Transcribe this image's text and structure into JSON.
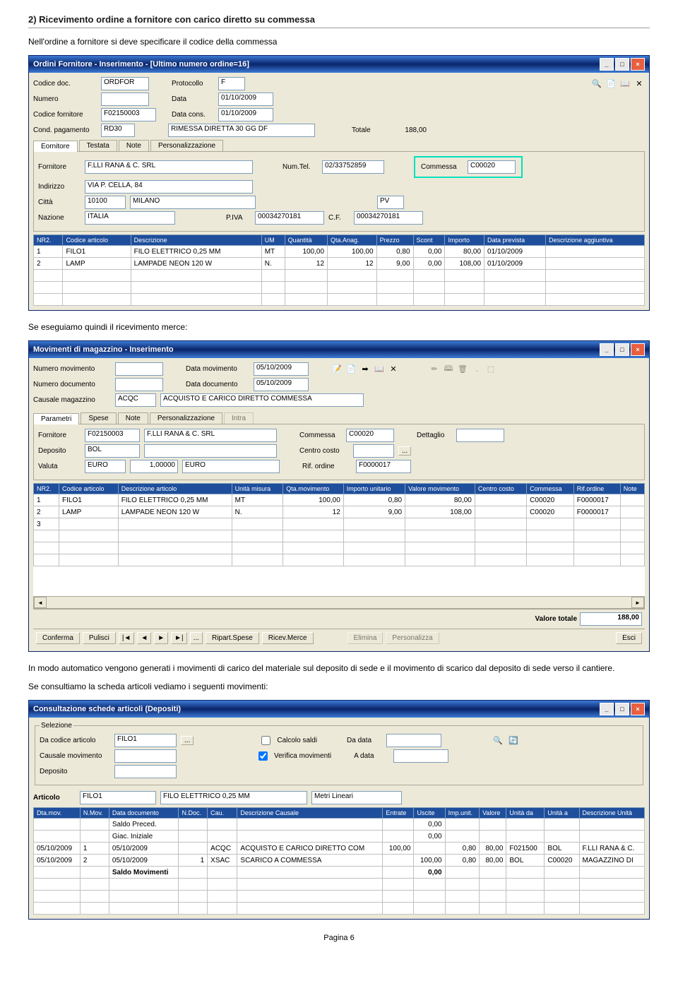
{
  "heading": "2) Ricevimento ordine a fornitore con carico diretto su commessa",
  "para1": "Nell'ordine a fornitore si deve specificare il codice della commessa",
  "para2": "Se eseguiamo quindi il ricevimento merce:",
  "para3": "In modo automatico vengono generati i movimenti di carico del materiale sul deposito di sede e il movimento di scarico dal deposito di sede verso il cantiere.",
  "para4": "Se consultiamo la scheda articoli vediamo i seguenti movimenti:",
  "pagenum": "Pagina 6",
  "win1": {
    "title": "Ordini Fornitore - Inserimento - [Ultimo numero ordine=16]",
    "labels": {
      "codicedoc": "Codice doc.",
      "numero": "Numero",
      "codfornitore": "Codice fornitore",
      "condpag": "Cond. pagamento",
      "protocollo": "Protocollo",
      "data": "Data",
      "datacons": "Data cons.",
      "totale": "Totale",
      "fornitore": "Fornitore",
      "indirizzo": "Indirizzo",
      "citta": "Città",
      "nazione": "Nazione",
      "numtel": "Num.Tel.",
      "commessa": "Commessa",
      "piva": "P.IVA",
      "cf": "C.F."
    },
    "values": {
      "codicedoc": "ORDFOR",
      "protocollo": "F",
      "data": "01/10/2009",
      "codfornitore": "F02150003",
      "datacons": "01/10/2009",
      "condpag": "RD30",
      "condpagdesc": "RIMESSA DIRETTA 30 GG DF",
      "totale": "188,00",
      "fornitore": "F.LLI RANA & C. SRL",
      "numtel": "02/33752859",
      "commessa": "C00020",
      "indirizzo": "VIA P. CELLA, 84",
      "citta": "10100",
      "cittanome": "MILANO",
      "pv": "PV",
      "nazione": "ITALIA",
      "piva": "00034270181",
      "cf": "00034270181"
    },
    "tabs": [
      "Eornitore",
      "Testata",
      "Note",
      "Personalizzazione"
    ],
    "gridheaders": [
      "NR2.",
      "Codice articolo",
      "Descrizione",
      "UM",
      "Quantità",
      "Qta.Anag.",
      "Prezzo",
      "Scont",
      "Importo",
      "Data prevista",
      "Descrizione aggiuntiva"
    ],
    "gridrows": [
      [
        "1",
        "FILO1",
        "FILO ELETTRICO 0,25 MM",
        "MT",
        "100,00",
        "100,00",
        "0,80",
        "0,00",
        "80,00",
        "01/10/2009",
        ""
      ],
      [
        "2",
        "LAMP",
        "LAMPADE NEON 120 W",
        "N.",
        "12",
        "12",
        "9,00",
        "0,00",
        "108,00",
        "01/10/2009",
        ""
      ]
    ]
  },
  "win2": {
    "title": "Movimenti di magazzino - Inserimento",
    "labels": {
      "nummov": "Numero movimento",
      "numdoc": "Numero documento",
      "causale": "Causale magazzino",
      "datamov": "Data movimento",
      "datadoc": "Data documento",
      "fornitore": "Fornitore",
      "deposito": "Deposito",
      "valuta": "Valuta",
      "commessa": "Commessa",
      "centrocosto": "Centro costo",
      "rifordine": "Rif. ordine",
      "dettaglio": "Dettaglio",
      "valtot": "Valore totale"
    },
    "values": {
      "datamov": "05/10/2009",
      "datadoc": "05/10/2009",
      "causale": "ACQC",
      "causaledesc": "ACQUISTO E CARICO DIRETTO COMMESSA",
      "fornitore": "F02150003",
      "fornitoredesc": "F.LLI RANA & C. SRL",
      "commessa": "C00020",
      "deposito": "BOL",
      "valuta": "EURO",
      "cambio": "1,00000",
      "valutadesc": "EURO",
      "rifordine": "F0000017",
      "valtot": "188,00"
    },
    "tabs": [
      "Parametri",
      "Spese",
      "Note",
      "Personalizzazione",
      "Intra"
    ],
    "gridheaders": [
      "NR2.",
      "Codice articolo",
      "Descrizione articolo",
      "Unità misura",
      "Qta.movimento",
      "Importo unitario",
      "Valore movimento",
      "Centro costo",
      "Commessa",
      "Rif.ordine",
      "Note"
    ],
    "gridrows": [
      [
        "1",
        "FILO1",
        "FILO ELETTRICO 0,25 MM",
        "MT",
        "100,00",
        "0,80",
        "80,00",
        "",
        "C00020",
        "F0000017",
        ""
      ],
      [
        "2",
        "LAMP",
        "LAMPADE NEON 120 W",
        "N.",
        "12",
        "9,00",
        "108,00",
        "",
        "C00020",
        "F0000017",
        ""
      ],
      [
        "3",
        "",
        "",
        "",
        "",
        "",
        "",
        "",
        "",
        "",
        ""
      ]
    ],
    "buttons": {
      "conferma": "Conferma",
      "pulisci": "Pulisci",
      "ripart": "Ripart.Spese",
      "ricev": "Ricev.Merce",
      "elimina": "Elimina",
      "personalizza": "Personalizza",
      "esci": "Esci"
    }
  },
  "win3": {
    "title": "Consultazione schede articoli (Depositi)",
    "labels": {
      "selezione": "Selezione",
      "dacodice": "Da codice articolo",
      "causalemov": "Causale movimento",
      "deposito": "Deposito",
      "calcolosaldi": "Calcolo saldi",
      "verificamov": "Verifica movimenti",
      "dadata": "Da data",
      "adata": "A data",
      "articolo": "Articolo"
    },
    "values": {
      "dacodice": "FILO1",
      "articolo": "FILO1",
      "articolodesc": "FILO ELETTRICO 0,25 MM",
      "um": "Metri Lineari"
    },
    "gridheaders": [
      "Dta.mov.",
      "N.Mov.",
      "Data documento",
      "N.Doc.",
      "Cau.",
      "Descrizione Causale",
      "Entrate",
      "Uscite",
      "Imp.unit.",
      "Valore",
      "Unità da",
      "Unità a",
      "Descrizione Unità"
    ],
    "gridrows": [
      [
        "",
        "",
        "Saldo Preced.",
        "",
        "",
        "",
        "",
        "0,00",
        "",
        "",
        "",
        "",
        ""
      ],
      [
        "",
        "",
        "Giac. Iniziale",
        "",
        "",
        "",
        "",
        "0,00",
        "",
        "",
        "",
        "",
        ""
      ],
      [
        "05/10/2009",
        "1",
        "05/10/2009",
        "",
        "ACQC",
        "ACQUISTO E CARICO DIRETTO COM",
        "100,00",
        "",
        "0,80",
        "80,00",
        "F021500",
        "BOL",
        "F.LLI RANA & C."
      ],
      [
        "05/10/2009",
        "2",
        "05/10/2009",
        "1",
        "XSAC",
        "SCARICO A COMMESSA",
        "",
        "100,00",
        "0,80",
        "80,00",
        "BOL",
        "C00020",
        "MAGAZZINO DI"
      ],
      [
        "",
        "",
        "Saldo Movimenti",
        "",
        "",
        "",
        "",
        "0,00",
        "",
        "",
        "",
        "",
        ""
      ]
    ]
  }
}
